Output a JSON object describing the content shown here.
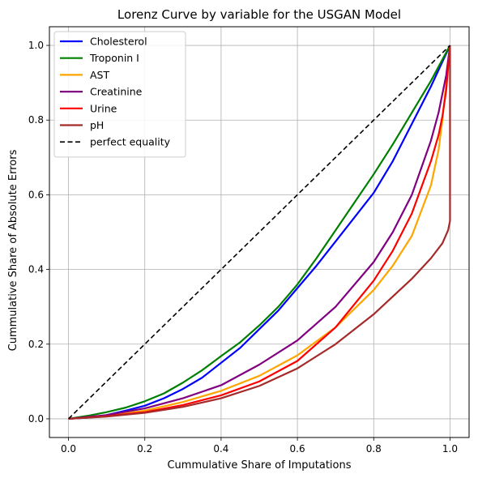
{
  "chart_data": {
    "type": "line",
    "title": "Lorenz Curve by variable for the USGAN Model",
    "xlabel": "Cummulative Share of Imputations",
    "ylabel": "Cummulative Share of Absolute Errors",
    "xlim": [
      -0.05,
      1.05
    ],
    "ylim": [
      -0.05,
      1.05
    ],
    "xticks": [
      "0.0",
      "0.2",
      "0.4",
      "0.6",
      "0.8",
      "1.0"
    ],
    "yticks": [
      "0.0",
      "0.2",
      "0.4",
      "0.6",
      "0.8",
      "1.0"
    ],
    "grid": true,
    "legend_position": "top-left",
    "series": [
      {
        "name": "Cholesterol",
        "color": "#0000ff",
        "dashed": false,
        "x": [
          0,
          0.05,
          0.1,
          0.15,
          0.2,
          0.25,
          0.3,
          0.35,
          0.4,
          0.45,
          0.5,
          0.55,
          0.6,
          0.65,
          0.7,
          0.75,
          0.8,
          0.85,
          0.9,
          0.95,
          1.0
        ],
        "y": [
          0,
          0.003,
          0.01,
          0.022,
          0.035,
          0.055,
          0.08,
          0.11,
          0.15,
          0.19,
          0.24,
          0.29,
          0.35,
          0.41,
          0.475,
          0.54,
          0.605,
          0.69,
          0.79,
          0.89,
          1.0
        ]
      },
      {
        "name": "Troponin I",
        "color": "#008000",
        "dashed": false,
        "x": [
          0,
          0.05,
          0.1,
          0.15,
          0.2,
          0.25,
          0.3,
          0.35,
          0.4,
          0.45,
          0.5,
          0.55,
          0.6,
          0.65,
          0.7,
          0.75,
          0.8,
          0.85,
          0.9,
          0.95,
          1.0
        ],
        "y": [
          0,
          0.008,
          0.018,
          0.03,
          0.047,
          0.068,
          0.097,
          0.13,
          0.168,
          0.205,
          0.25,
          0.3,
          0.36,
          0.43,
          0.505,
          0.58,
          0.655,
          0.735,
          0.82,
          0.905,
          1.0
        ]
      },
      {
        "name": "AST",
        "color": "#ffa500",
        "dashed": false,
        "x": [
          0,
          0.1,
          0.2,
          0.3,
          0.4,
          0.5,
          0.6,
          0.7,
          0.8,
          0.85,
          0.9,
          0.95,
          0.97,
          0.98,
          0.99,
          1.0
        ],
        "y": [
          0,
          0.008,
          0.022,
          0.045,
          0.075,
          0.115,
          0.17,
          0.245,
          0.345,
          0.41,
          0.49,
          0.625,
          0.72,
          0.8,
          0.9,
          1.0
        ]
      },
      {
        "name": "Creatinine",
        "color": "#800080",
        "dashed": false,
        "x": [
          0,
          0.1,
          0.2,
          0.3,
          0.4,
          0.5,
          0.6,
          0.7,
          0.8,
          0.85,
          0.9,
          0.95,
          0.97,
          0.99,
          1.0
        ],
        "y": [
          0,
          0.01,
          0.028,
          0.055,
          0.09,
          0.145,
          0.21,
          0.3,
          0.42,
          0.5,
          0.6,
          0.745,
          0.82,
          0.92,
          1.0
        ]
      },
      {
        "name": "Urine",
        "color": "#ff0000",
        "dashed": false,
        "x": [
          0,
          0.1,
          0.2,
          0.3,
          0.4,
          0.5,
          0.6,
          0.7,
          0.8,
          0.85,
          0.9,
          0.95,
          0.97,
          0.98,
          0.99,
          1.0
        ],
        "y": [
          0,
          0.007,
          0.018,
          0.037,
          0.063,
          0.1,
          0.155,
          0.245,
          0.37,
          0.45,
          0.55,
          0.69,
          0.76,
          0.81,
          0.88,
          1.0
        ]
      },
      {
        "name": "pH",
        "color": "#a52a2a",
        "dashed": false,
        "x": [
          0,
          0.1,
          0.2,
          0.3,
          0.4,
          0.5,
          0.6,
          0.7,
          0.8,
          0.9,
          0.95,
          0.98,
          0.995,
          1.0,
          1.0
        ],
        "y": [
          0,
          0.006,
          0.016,
          0.032,
          0.055,
          0.088,
          0.135,
          0.2,
          0.28,
          0.375,
          0.43,
          0.47,
          0.505,
          0.53,
          1.0
        ]
      },
      {
        "name": "perfect equality",
        "color": "#000000",
        "dashed": true,
        "x": [
          0,
          1.0
        ],
        "y": [
          0,
          1.0
        ]
      }
    ]
  }
}
